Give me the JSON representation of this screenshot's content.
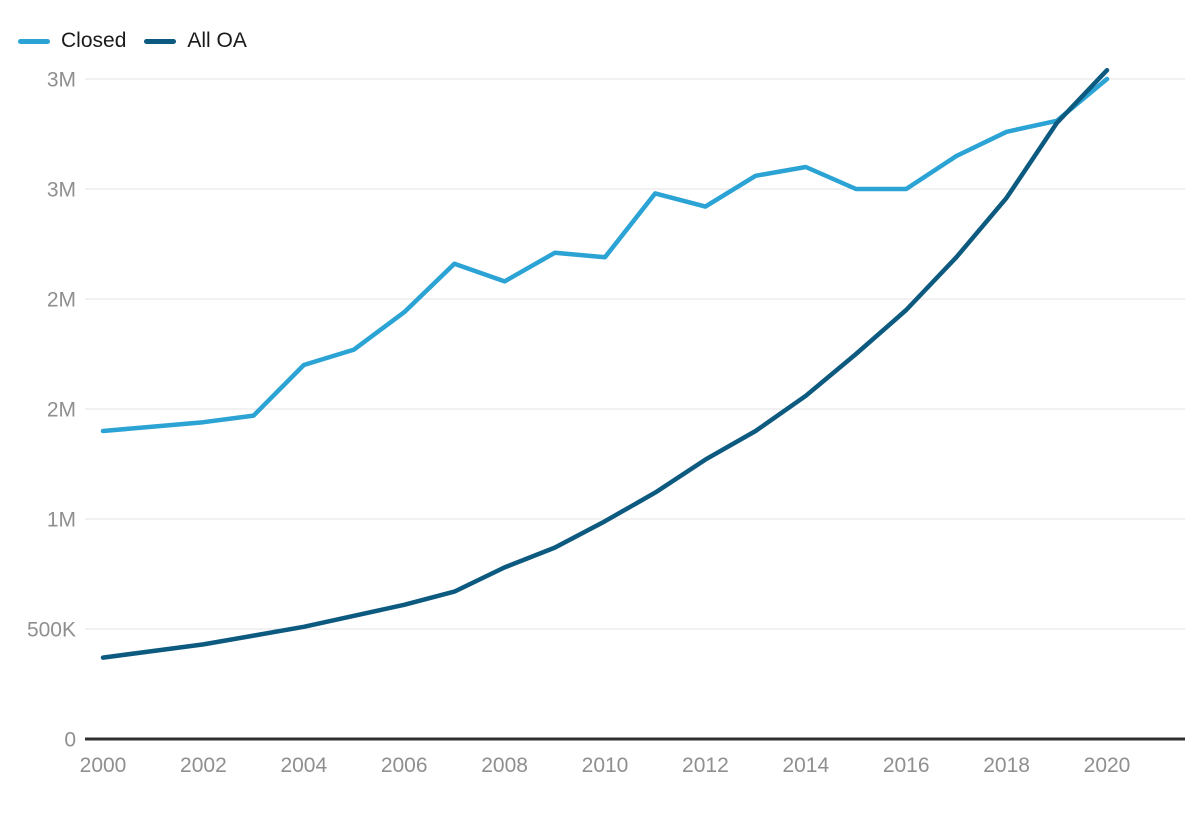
{
  "chart_data": {
    "type": "line",
    "x": [
      2000,
      2001,
      2002,
      2003,
      2004,
      2005,
      2006,
      2007,
      2008,
      2009,
      2010,
      2011,
      2012,
      2013,
      2014,
      2015,
      2016,
      2017,
      2018,
      2019,
      2020
    ],
    "series": [
      {
        "name": "Closed",
        "color": "#2ba3d4",
        "values": [
          1400000,
          1420000,
          1440000,
          1470000,
          1700000,
          1770000,
          1940000,
          2160000,
          2080000,
          2210000,
          2190000,
          2480000,
          2420000,
          2560000,
          2600000,
          2500000,
          2500000,
          2650000,
          2760000,
          2810000,
          3000000
        ]
      },
      {
        "name": "All OA",
        "color": "#0d5a80",
        "values": [
          370000,
          400000,
          430000,
          470000,
          510000,
          560000,
          610000,
          670000,
          780000,
          870000,
          990000,
          1120000,
          1270000,
          1400000,
          1560000,
          1750000,
          1950000,
          2190000,
          2460000,
          2800000,
          3040000
        ]
      }
    ],
    "y_axis": {
      "ticks": [
        {
          "value": 0,
          "label": "0"
        },
        {
          "value": 500000,
          "label": "500K"
        },
        {
          "value": 1000000,
          "label": "1M"
        },
        {
          "value": 1500000,
          "label": "2M"
        },
        {
          "value": 2000000,
          "label": "2M"
        },
        {
          "value": 2500000,
          "label": "3M"
        },
        {
          "value": 3000000,
          "label": "3M"
        }
      ]
    },
    "x_axis": {
      "ticks": [
        2000,
        2002,
        2004,
        2006,
        2008,
        2010,
        2012,
        2014,
        2016,
        2018,
        2020
      ]
    },
    "ylim": [
      0,
      3000000
    ],
    "grid": true,
    "legend_position": "top-left",
    "colors": {
      "gridline": "#e3e3e3",
      "axis_line": "#2f2f2f",
      "tick_label": "#8f8f8f",
      "legend_text": "#1a1a1a",
      "background": "#ffffff"
    }
  }
}
